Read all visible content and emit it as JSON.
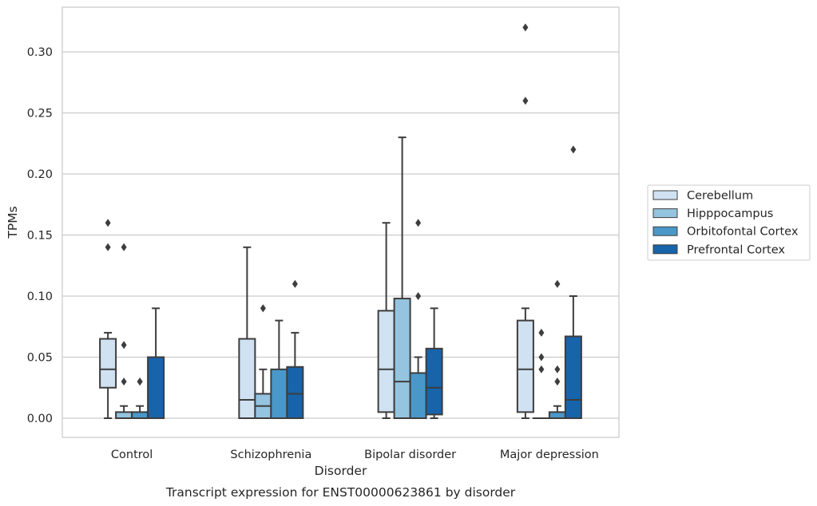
{
  "chart_data": {
    "type": "boxplot",
    "title": "",
    "caption": "Transcript expression for ENST00000623861 by disorder",
    "xlabel": "Disorder",
    "ylabel": "TPMs",
    "ylim": [
      -0.016,
      0.336
    ],
    "yticks": [
      0.0,
      0.05,
      0.1,
      0.15,
      0.2,
      0.25,
      0.3
    ],
    "ytick_labels": [
      "0.00",
      "0.05",
      "0.10",
      "0.15",
      "0.20",
      "0.25",
      "0.30"
    ],
    "grid": "horizontal",
    "legend_position": "center-right, outside plot",
    "categories": [
      "Control",
      "Schizophrenia",
      "Bipolar disorder",
      "Major depression"
    ],
    "series": [
      {
        "name": "Cerebellum",
        "color": "#d0e1f2",
        "boxes": [
          {
            "whislo": 0.0,
            "q1": 0.025,
            "med": 0.04,
            "q3": 0.065,
            "whishi": 0.07,
            "fliers": [
              0.14,
              0.16
            ]
          },
          {
            "whislo": 0.0,
            "q1": 0.0,
            "med": 0.015,
            "q3": 0.065,
            "whishi": 0.14,
            "fliers": []
          },
          {
            "whislo": 0.0,
            "q1": 0.005,
            "med": 0.04,
            "q3": 0.088,
            "whishi": 0.16,
            "fliers": []
          },
          {
            "whislo": 0.0,
            "q1": 0.005,
            "med": 0.04,
            "q3": 0.08,
            "whishi": 0.09,
            "fliers": [
              0.26,
              0.32
            ]
          }
        ]
      },
      {
        "name": "Hipppocampus",
        "color": "#94c4df",
        "boxes": [
          {
            "whislo": 0.0,
            "q1": 0.0,
            "med": 0.0,
            "q3": 0.005,
            "whishi": 0.01,
            "fliers": [
              0.03,
              0.06,
              0.14
            ]
          },
          {
            "whislo": 0.0,
            "q1": 0.0,
            "med": 0.01,
            "q3": 0.02,
            "whishi": 0.04,
            "fliers": [
              0.09
            ]
          },
          {
            "whislo": 0.0,
            "q1": 0.0,
            "med": 0.03,
            "q3": 0.098,
            "whishi": 0.23,
            "fliers": []
          },
          {
            "whislo": 0.0,
            "q1": 0.0,
            "med": 0.0,
            "q3": 0.0,
            "whishi": 0.0,
            "fliers": [
              0.04,
              0.05,
              0.07
            ]
          }
        ]
      },
      {
        "name": "Orbitofontal Cortex",
        "color": "#4a98c9",
        "boxes": [
          {
            "whislo": 0.0,
            "q1": 0.0,
            "med": 0.0,
            "q3": 0.005,
            "whishi": 0.01,
            "fliers": [
              0.03,
              0.03
            ]
          },
          {
            "whislo": 0.0,
            "q1": 0.0,
            "med": 0.0,
            "q3": 0.04,
            "whishi": 0.08,
            "fliers": []
          },
          {
            "whislo": 0.0,
            "q1": 0.0,
            "med": 0.0,
            "q3": 0.037,
            "whishi": 0.05,
            "fliers": [
              0.1,
              0.16
            ]
          },
          {
            "whislo": 0.0,
            "q1": 0.0,
            "med": 0.0,
            "q3": 0.005,
            "whishi": 0.01,
            "fliers": [
              0.03,
              0.04,
              0.11
            ]
          }
        ]
      },
      {
        "name": "Prefrontal Cortex",
        "color": "#1764ab",
        "boxes": [
          {
            "whislo": 0.0,
            "q1": 0.0,
            "med": 0.0,
            "q3": 0.05,
            "whishi": 0.09,
            "fliers": []
          },
          {
            "whislo": 0.0,
            "q1": 0.0,
            "med": 0.02,
            "q3": 0.042,
            "whishi": 0.07,
            "fliers": [
              0.11
            ]
          },
          {
            "whislo": 0.0,
            "q1": 0.003,
            "med": 0.025,
            "q3": 0.057,
            "whishi": 0.09,
            "fliers": []
          },
          {
            "whislo": 0.0,
            "q1": 0.0,
            "med": 0.015,
            "q3": 0.067,
            "whishi": 0.1,
            "fliers": [
              0.22
            ]
          }
        ]
      }
    ]
  }
}
